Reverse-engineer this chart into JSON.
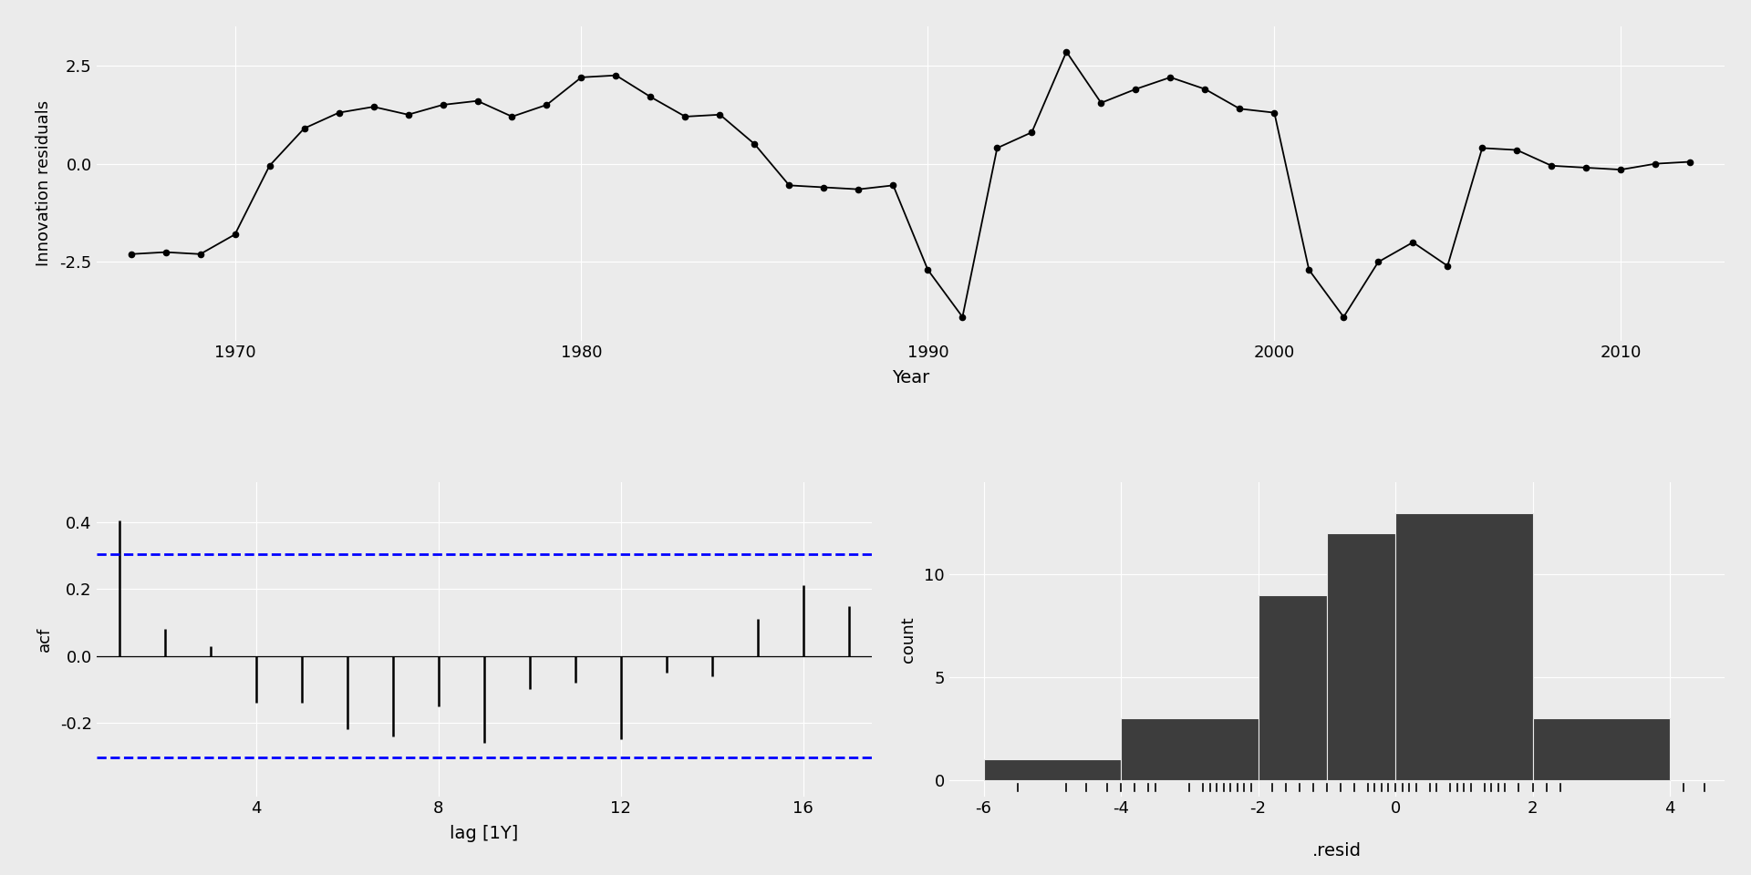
{
  "bg_color": "#EBEBEB",
  "grid_color": "#FFFFFF",
  "ts_years": [
    1967,
    1968,
    1969,
    1970,
    1971,
    1972,
    1973,
    1974,
    1975,
    1976,
    1977,
    1978,
    1979,
    1980,
    1981,
    1982,
    1983,
    1984,
    1985,
    1986,
    1987,
    1988,
    1989,
    1990,
    1991,
    1992,
    1993,
    1994,
    1995,
    1996,
    1997,
    1998,
    1999,
    2000,
    2001,
    2002,
    2003,
    2004,
    2005,
    2006,
    2007,
    2008,
    2009,
    2010,
    2011,
    2012
  ],
  "ts_values": [
    -2.3,
    -2.25,
    -2.3,
    -1.8,
    -0.05,
    0.9,
    1.3,
    1.45,
    1.25,
    1.5,
    1.6,
    1.2,
    1.5,
    2.2,
    2.25,
    1.7,
    1.2,
    1.25,
    0.5,
    -0.55,
    -0.6,
    -0.65,
    -0.55,
    -2.7,
    -3.9,
    0.4,
    0.8,
    2.85,
    1.55,
    1.9,
    2.2,
    1.9,
    1.4,
    1.3,
    -2.7,
    -3.9,
    -2.5,
    -2.0,
    -2.6,
    0.4,
    0.35,
    -0.05,
    -0.1,
    -0.15,
    0.0,
    0.05
  ],
  "ts_ylabel": "Innovation residuals",
  "ts_xlabel": "Year",
  "ts_xticks": [
    1970,
    1980,
    1990,
    2000,
    2010
  ],
  "ts_yticks": [
    -2.5,
    0.0,
    2.5
  ],
  "ts_ylim": [
    -4.5,
    3.5
  ],
  "ts_xlim": [
    1966,
    2013
  ],
  "acf_lags": [
    1,
    2,
    3,
    4,
    5,
    6,
    7,
    8,
    9,
    10,
    11,
    12,
    13,
    14,
    15,
    16,
    17
  ],
  "acf_values": [
    0.405,
    0.08,
    0.03,
    -0.14,
    -0.14,
    -0.22,
    -0.24,
    -0.15,
    -0.26,
    -0.1,
    -0.08,
    -0.25,
    -0.05,
    -0.06,
    0.11,
    0.21,
    0.15
  ],
  "acf_ci": 0.305,
  "acf_ci_neg": -0.305,
  "acf_ylabel": "acf",
  "acf_xlabel": "lag [1Y]",
  "acf_xticks": [
    4,
    8,
    12,
    16
  ],
  "acf_yticks": [
    -0.2,
    0.0,
    0.2,
    0.4
  ],
  "acf_ylim": [
    -0.42,
    0.52
  ],
  "acf_xlim": [
    0.5,
    17.5
  ],
  "hist_counts": [
    1,
    3,
    9,
    12,
    13,
    3
  ],
  "hist_edges": [
    -6,
    -4,
    -2,
    -1,
    0,
    2,
    4
  ],
  "hist_color": "#3D3D3D",
  "hist_ylabel": "count",
  "hist_xlabel": ".resid",
  "hist_yticks": [
    0,
    5,
    10
  ],
  "hist_xticks": [
    -6,
    -4,
    -2,
    0,
    2,
    4
  ],
  "hist_ylim": [
    -0.8,
    14.5
  ],
  "hist_xlim": [
    -6.5,
    4.8
  ],
  "rug_values": [
    -5.5,
    -4.8,
    -4.5,
    -4.2,
    -4.0,
    -3.8,
    -3.6,
    -3.5,
    -3.0,
    -2.8,
    -2.7,
    -2.6,
    -2.5,
    -2.4,
    -2.3,
    -2.2,
    -2.1,
    -1.8,
    -1.6,
    -1.4,
    -1.2,
    -1.0,
    -0.8,
    -0.6,
    -0.4,
    -0.3,
    -0.2,
    -0.1,
    0.0,
    0.1,
    0.2,
    0.3,
    0.5,
    0.6,
    0.8,
    0.9,
    1.0,
    1.1,
    1.3,
    1.4,
    1.5,
    1.6,
    1.8,
    2.0,
    2.2,
    2.4,
    4.2,
    4.5
  ]
}
